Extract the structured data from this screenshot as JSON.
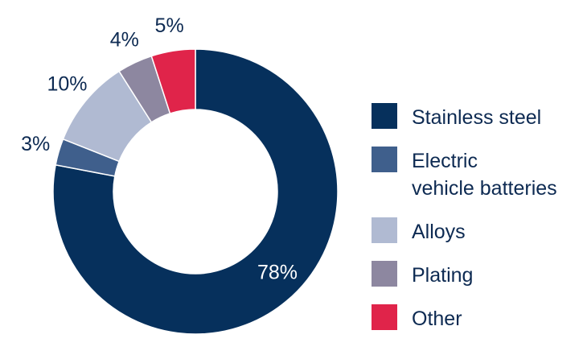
{
  "chart_data": {
    "type": "pie",
    "donut": true,
    "categories": [
      "Stainless steel",
      "Electric\nvehicle batteries",
      "Alloys",
      "Plating",
      "Other"
    ],
    "values": [
      78,
      3,
      10,
      4,
      5
    ],
    "labels": [
      "78%",
      "3%",
      "10%",
      "4%",
      "5%"
    ],
    "colors": [
      "#06305c",
      "#3f5f8c",
      "#b0bad2",
      "#8d87a0",
      "#e0244a"
    ],
    "title": "",
    "legend_position": "right"
  }
}
